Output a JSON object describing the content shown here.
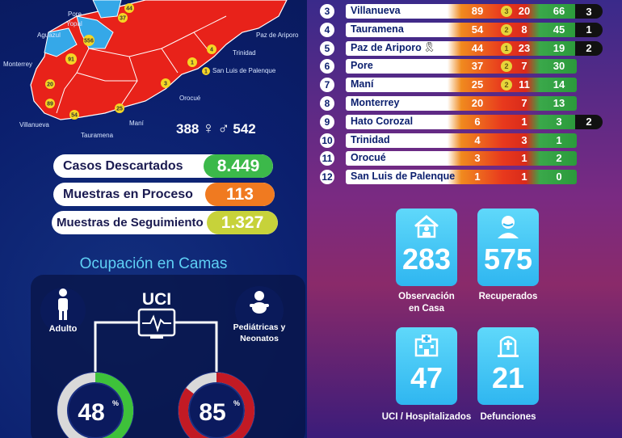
{
  "map": {
    "places": [
      "Pore",
      "Yopal",
      "Aguazul",
      "Monterrey",
      "Villanueva",
      "Tauramena",
      "Maní",
      "Orocué",
      "San Luis de Palenque",
      "Trinidad",
      "Paz de Ariporo"
    ],
    "badges": [
      "44",
      "37",
      "556",
      "91",
      "20",
      "89",
      "54",
      "25",
      "3",
      "1",
      "4",
      "1"
    ],
    "region_color": "#e8221a"
  },
  "gender": {
    "female": "388",
    "male": "542"
  },
  "summary": {
    "descartados": {
      "label": "Casos Descartados",
      "value": "8.449",
      "color": "#3cb94a"
    },
    "proceso": {
      "label": "Muestras en Proceso",
      "value": "113",
      "color": "#f07a20"
    },
    "seguimiento": {
      "label": "Muestras de Seguimiento",
      "value": "1.327",
      "color": "#c7d23a"
    }
  },
  "ocupacion": {
    "title": "Ocupación en Camas",
    "uci_label": "UCI",
    "adulto_label": "Adulto",
    "pediatricas_label": [
      "Pediátricas y",
      "Neonatos"
    ],
    "adulto_pct": "48",
    "pediatrico_pct": "85",
    "adulto_fraction": 0.48,
    "pediatrico_fraction": 0.85,
    "pct_sign": "%"
  },
  "municipios": [
    {
      "n": "3",
      "name": "Villanueva",
      "a": "89",
      "b": "3",
      "c": "20",
      "d": "66",
      "e": "3"
    },
    {
      "n": "4",
      "name": "Tauramena",
      "a": "54",
      "b": "2",
      "c": "8",
      "d": "45",
      "e": "1"
    },
    {
      "n": "5",
      "name": "Paz de  Ariporo",
      "a": "44",
      "b": "1",
      "c": "23",
      "d": "19",
      "e": "2",
      "ribbon": true
    },
    {
      "n": "6",
      "name": "Pore",
      "a": "37",
      "b": "2",
      "c": "7",
      "d": "30",
      "e": ""
    },
    {
      "n": "7",
      "name": "Maní",
      "a": "25",
      "b": "2",
      "c": "11",
      "d": "14",
      "e": ""
    },
    {
      "n": "8",
      "name": "Monterrey",
      "a": "20",
      "b": "",
      "c": "7",
      "d": "13",
      "e": ""
    },
    {
      "n": "9",
      "name": "Hato Corozal",
      "a": "6",
      "b": "",
      "c": "1",
      "d": "3",
      "e": "2"
    },
    {
      "n": "10",
      "name": "Trinidad",
      "a": "4",
      "b": "",
      "c": "3",
      "d": "1",
      "e": ""
    },
    {
      "n": "11",
      "name": "Orocué",
      "a": "3",
      "b": "",
      "c": "1",
      "d": "2",
      "e": ""
    },
    {
      "n": "12",
      "name": "San Luis de Palenque",
      "a": "1",
      "b": "",
      "c": "1",
      "d": "0",
      "e": ""
    }
  ],
  "cards": {
    "observacion": {
      "value": "283",
      "label": [
        "Observación",
        "en Casa"
      ],
      "icon": "house-person-icon"
    },
    "recuperados": {
      "value": "575",
      "label": [
        "Recuperados"
      ],
      "icon": "person-mask-icon"
    },
    "uci": {
      "value": "47",
      "label": [
        "UCI / Hospitalizados"
      ],
      "icon": "hospital-icon"
    },
    "defunciones": {
      "value": "21",
      "label": [
        "Defunciones"
      ],
      "icon": "tombstone-icon"
    }
  }
}
